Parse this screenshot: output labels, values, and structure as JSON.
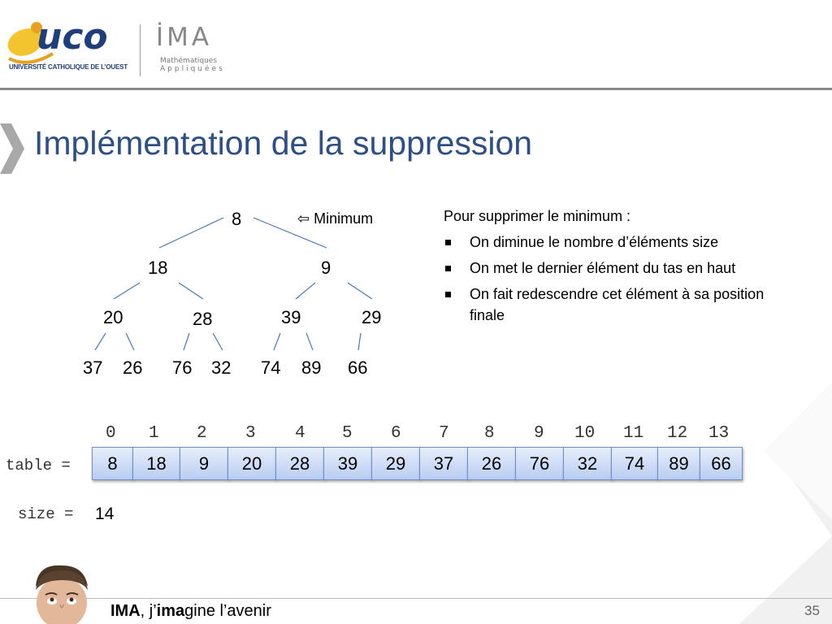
{
  "header": {
    "uco_logo_text": "uco",
    "uco_logo_subtitle": "UNIVERSITÉ CATHOLIQUE DE L’OUEST",
    "ima_logo_text": "İMA",
    "ima_logo_line1": "Mathématiques",
    "ima_logo_line2": "Appliquées"
  },
  "title": "Implémentation de la suppression",
  "tree": {
    "nodes": [
      "8",
      "18",
      "9",
      "20",
      "28",
      "39",
      "29",
      "37",
      "26",
      "76",
      "32",
      "74",
      "89",
      "66"
    ],
    "minimum_label": "⇦ Minimum"
  },
  "bullets": {
    "intro": "Pour supprimer le minimum :",
    "items": [
      "On diminue le nombre d’éléments size",
      "On met le dernier élément du tas en haut",
      "On fait redescendre cet élément à sa position finale"
    ]
  },
  "array": {
    "table_label": "table =",
    "indices": [
      "0",
      "1",
      "2",
      "3",
      "4",
      "5",
      "6",
      "7",
      "8",
      "9",
      "10",
      "11",
      "12",
      "13"
    ],
    "values": [
      "8",
      "18",
      "9",
      "20",
      "28",
      "39",
      "29",
      "37",
      "26",
      "76",
      "32",
      "74",
      "89",
      "66"
    ],
    "size_label": "size =",
    "size_value": "14"
  },
  "footer": {
    "motto_bold1": "IMA",
    "motto_part2": ", j’",
    "motto_bold2": "ima",
    "motto_part3": "gine l’avenir",
    "page_number": "35"
  },
  "colors": {
    "title": "#2d4f85",
    "tree_lines": "#4a78b8",
    "cell_border": "#6f8fc4",
    "rule": "#8a8a8a"
  }
}
